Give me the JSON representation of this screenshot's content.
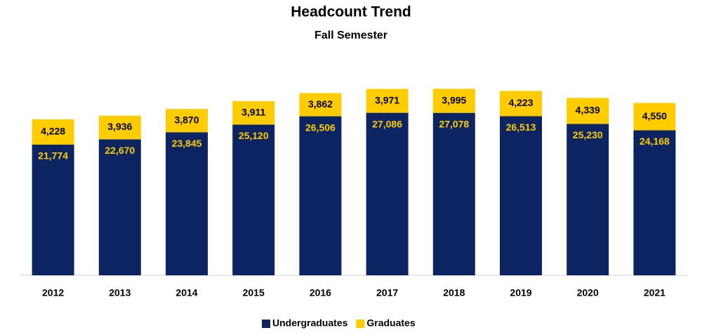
{
  "chart_data": {
    "type": "stacked-bar",
    "title": "Headcount Trend",
    "subtitle": "Fall Semester",
    "categories": [
      "2012",
      "2013",
      "2014",
      "2015",
      "2016",
      "2017",
      "2018",
      "2019",
      "2020",
      "2021"
    ],
    "series": [
      {
        "name": "Undergraduates",
        "color": "#0c2461",
        "values": [
          21774,
          22670,
          23845,
          25120,
          26506,
          27086,
          27078,
          26513,
          25230,
          24168
        ],
        "value_labels": [
          "21,774",
          "22,670",
          "23,845",
          "25,120",
          "26,506",
          "27,086",
          "27,078",
          "26,513",
          "25,230",
          "24,168"
        ]
      },
      {
        "name": "Graduates",
        "color": "#ffcc00",
        "values": [
          4228,
          3936,
          3870,
          3911,
          3862,
          3971,
          3995,
          4223,
          4339,
          4550
        ],
        "value_labels": [
          "4,228",
          "3,936",
          "3,870",
          "3,911",
          "3,862",
          "3,971",
          "3,995",
          "4,223",
          "4,339",
          "4,550"
        ]
      }
    ],
    "ylim": [
      0,
      35000
    ],
    "legend": "bottom"
  }
}
